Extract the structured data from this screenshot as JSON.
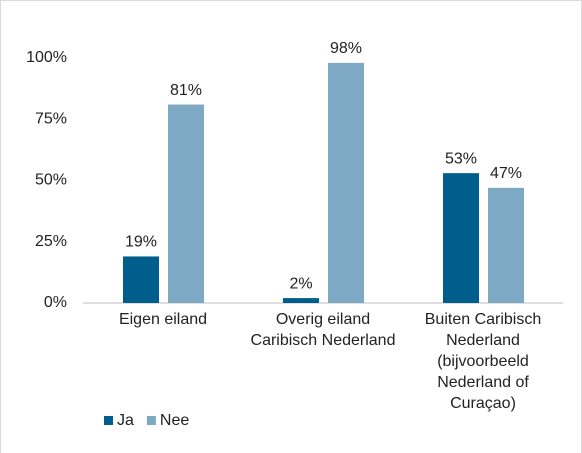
{
  "chart_data": {
    "type": "bar",
    "categories": [
      "Eigen eiland",
      "Overig eiland Caribisch Nederland",
      "Buiten Caribisch Nederland (bijvoorbeeld Nederland of Curaçao)"
    ],
    "series": [
      {
        "name": "Ja",
        "color": "#005e8c",
        "values": [
          19,
          2,
          53
        ],
        "value_labels": [
          "19%",
          "2%",
          "53%"
        ]
      },
      {
        "name": "Nee",
        "color": "#7ea9c5",
        "values": [
          81,
          98,
          47
        ],
        "value_labels": [
          "81%",
          "98%",
          "47%"
        ]
      }
    ],
    "ylim": [
      0,
      100
    ],
    "yticks": [
      {
        "value": 0,
        "label": "0%"
      },
      {
        "value": 25,
        "label": "25%"
      },
      {
        "value": 50,
        "label": "50%"
      },
      {
        "value": 75,
        "label": "75%"
      },
      {
        "value": 100,
        "label": "100%"
      }
    ],
    "grid": false,
    "legend": "bottom-left"
  }
}
